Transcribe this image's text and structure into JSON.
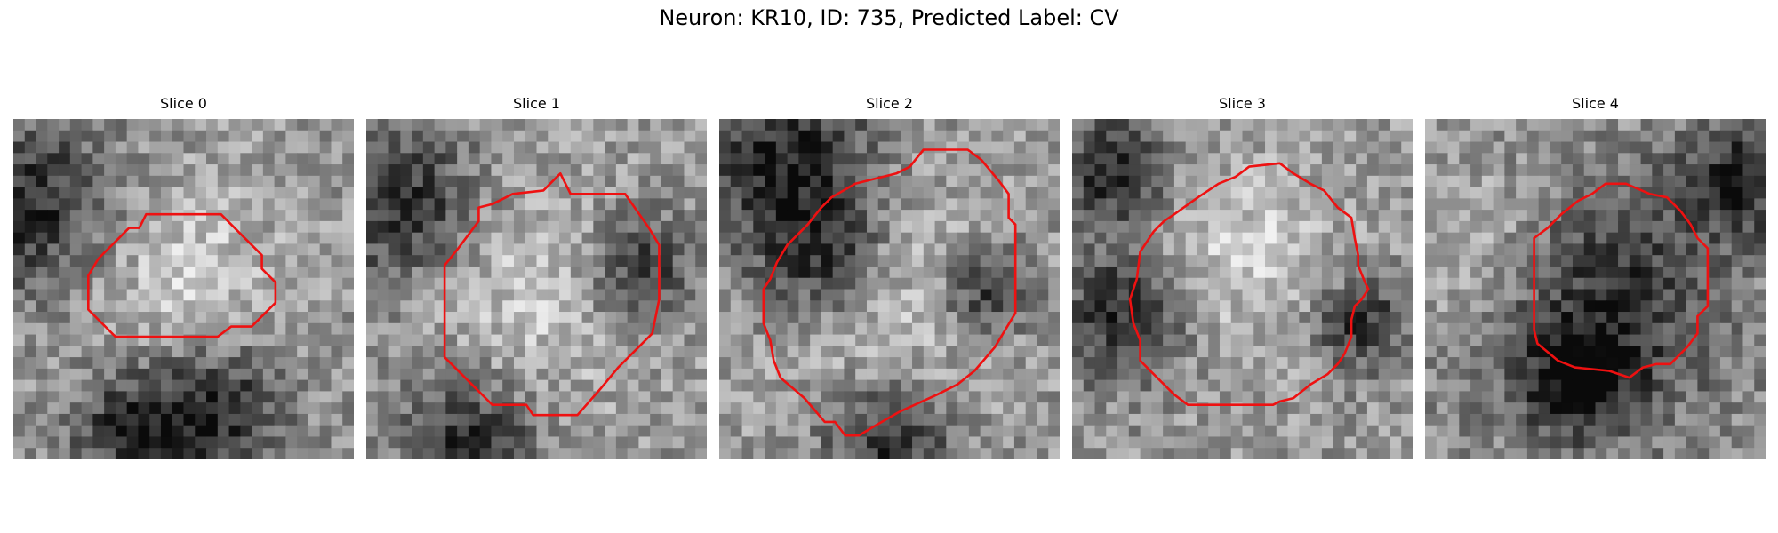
{
  "figure": {
    "title": "Neuron: KR10, ID: 735, Predicted Label: CV",
    "contour_color": "#ee1111"
  },
  "slices": [
    {
      "title": "Slice 0",
      "grid": 30,
      "bright_center": [
        0.5,
        0.45
      ],
      "bright_radius": 0.28,
      "dark_blobs": [
        [
          0.05,
          0.25,
          0.18
        ],
        [
          0.6,
          0.85,
          0.14
        ],
        [
          0.35,
          0.92,
          0.12
        ]
      ],
      "contour": [
        [
          0.39,
          0.28
        ],
        [
          0.61,
          0.28
        ],
        [
          0.66,
          0.33
        ],
        [
          0.69,
          0.36
        ],
        [
          0.73,
          0.4
        ],
        [
          0.73,
          0.44
        ],
        [
          0.77,
          0.48
        ],
        [
          0.77,
          0.54
        ],
        [
          0.73,
          0.58
        ],
        [
          0.7,
          0.61
        ],
        [
          0.64,
          0.61
        ],
        [
          0.6,
          0.64
        ],
        [
          0.3,
          0.64
        ],
        [
          0.22,
          0.56
        ],
        [
          0.22,
          0.46
        ],
        [
          0.25,
          0.41
        ],
        [
          0.3,
          0.36
        ],
        [
          0.34,
          0.32
        ],
        [
          0.37,
          0.32
        ]
      ]
    },
    {
      "title": "Slice 1",
      "grid": 30,
      "bright_center": [
        0.52,
        0.5
      ],
      "bright_radius": 0.32,
      "dark_blobs": [
        [
          0.1,
          0.25,
          0.16
        ],
        [
          0.8,
          0.45,
          0.12
        ],
        [
          0.3,
          0.95,
          0.14
        ]
      ],
      "contour": [
        [
          0.33,
          0.26
        ],
        [
          0.37,
          0.25
        ],
        [
          0.43,
          0.22
        ],
        [
          0.52,
          0.21
        ],
        [
          0.56,
          0.17
        ],
        [
          0.57,
          0.16
        ],
        [
          0.6,
          0.22
        ],
        [
          0.76,
          0.22
        ],
        [
          0.83,
          0.32
        ],
        [
          0.86,
          0.37
        ],
        [
          0.86,
          0.53
        ],
        [
          0.84,
          0.63
        ],
        [
          0.81,
          0.66
        ],
        [
          0.74,
          0.73
        ],
        [
          0.69,
          0.79
        ],
        [
          0.62,
          0.87
        ],
        [
          0.49,
          0.87
        ],
        [
          0.47,
          0.84
        ],
        [
          0.37,
          0.84
        ],
        [
          0.23,
          0.7
        ],
        [
          0.23,
          0.43
        ],
        [
          0.27,
          0.38
        ],
        [
          0.3,
          0.34
        ],
        [
          0.33,
          0.3
        ]
      ]
    },
    {
      "title": "Slice 2",
      "grid": 30,
      "bright_center": [
        0.5,
        0.52
      ],
      "bright_radius": 0.36,
      "dark_blobs": [
        [
          0.18,
          0.1,
          0.2
        ],
        [
          0.3,
          0.4,
          0.14
        ],
        [
          0.78,
          0.5,
          0.1
        ],
        [
          0.5,
          0.95,
          0.14
        ]
      ],
      "contour": [
        [
          0.6,
          0.09
        ],
        [
          0.73,
          0.09
        ],
        [
          0.77,
          0.12
        ],
        [
          0.82,
          0.18
        ],
        [
          0.85,
          0.22
        ],
        [
          0.85,
          0.29
        ],
        [
          0.87,
          0.31
        ],
        [
          0.87,
          0.57
        ],
        [
          0.81,
          0.67
        ],
        [
          0.75,
          0.74
        ],
        [
          0.7,
          0.78
        ],
        [
          0.64,
          0.81
        ],
        [
          0.53,
          0.86
        ],
        [
          0.46,
          0.9
        ],
        [
          0.41,
          0.93
        ],
        [
          0.37,
          0.93
        ],
        [
          0.34,
          0.89
        ],
        [
          0.31,
          0.89
        ],
        [
          0.25,
          0.82
        ],
        [
          0.18,
          0.76
        ],
        [
          0.16,
          0.71
        ],
        [
          0.15,
          0.65
        ],
        [
          0.13,
          0.6
        ],
        [
          0.13,
          0.5
        ],
        [
          0.15,
          0.47
        ],
        [
          0.17,
          0.42
        ],
        [
          0.2,
          0.37
        ],
        [
          0.23,
          0.34
        ],
        [
          0.26,
          0.31
        ],
        [
          0.3,
          0.26
        ],
        [
          0.33,
          0.23
        ],
        [
          0.4,
          0.19
        ],
        [
          0.44,
          0.18
        ],
        [
          0.52,
          0.16
        ],
        [
          0.56,
          0.14
        ]
      ]
    },
    {
      "title": "Slice 3",
      "grid": 30,
      "bright_center": [
        0.5,
        0.4
      ],
      "bright_radius": 0.3,
      "dark_blobs": [
        [
          0.15,
          0.57,
          0.14
        ],
        [
          0.12,
          0.15,
          0.12
        ],
        [
          0.85,
          0.6,
          0.1
        ]
      ],
      "contour": [
        [
          0.3,
          0.28
        ],
        [
          0.37,
          0.23
        ],
        [
          0.43,
          0.19
        ],
        [
          0.48,
          0.17
        ],
        [
          0.52,
          0.14
        ],
        [
          0.61,
          0.13
        ],
        [
          0.65,
          0.16
        ],
        [
          0.7,
          0.19
        ],
        [
          0.74,
          0.21
        ],
        [
          0.78,
          0.26
        ],
        [
          0.82,
          0.29
        ],
        [
          0.83,
          0.35
        ],
        [
          0.84,
          0.4
        ],
        [
          0.84,
          0.43
        ],
        [
          0.86,
          0.48
        ],
        [
          0.87,
          0.5
        ],
        [
          0.85,
          0.53
        ],
        [
          0.83,
          0.55
        ],
        [
          0.82,
          0.59
        ],
        [
          0.82,
          0.64
        ],
        [
          0.8,
          0.69
        ],
        [
          0.78,
          0.72
        ],
        [
          0.75,
          0.75
        ],
        [
          0.7,
          0.78
        ],
        [
          0.65,
          0.82
        ],
        [
          0.61,
          0.83
        ],
        [
          0.59,
          0.84
        ],
        [
          0.34,
          0.84
        ],
        [
          0.3,
          0.81
        ],
        [
          0.24,
          0.75
        ],
        [
          0.2,
          0.71
        ],
        [
          0.2,
          0.65
        ],
        [
          0.18,
          0.6
        ],
        [
          0.17,
          0.53
        ],
        [
          0.19,
          0.47
        ],
        [
          0.2,
          0.39
        ],
        [
          0.24,
          0.33
        ],
        [
          0.27,
          0.3
        ]
      ]
    },
    {
      "title": "Slice 4",
      "grid": 30,
      "bright_center": [
        0.2,
        0.4
      ],
      "bright_radius": 0.25,
      "dark_blobs": [
        [
          0.5,
          0.55,
          0.26
        ],
        [
          0.92,
          0.18,
          0.12
        ],
        [
          0.45,
          0.78,
          0.1
        ]
      ],
      "contour": [
        [
          0.49,
          0.22
        ],
        [
          0.53,
          0.19
        ],
        [
          0.59,
          0.19
        ],
        [
          0.66,
          0.22
        ],
        [
          0.71,
          0.23
        ],
        [
          0.75,
          0.27
        ],
        [
          0.78,
          0.31
        ],
        [
          0.8,
          0.35
        ],
        [
          0.83,
          0.38
        ],
        [
          0.83,
          0.55
        ],
        [
          0.8,
          0.58
        ],
        [
          0.8,
          0.63
        ],
        [
          0.77,
          0.67
        ],
        [
          0.72,
          0.72
        ],
        [
          0.68,
          0.72
        ],
        [
          0.64,
          0.73
        ],
        [
          0.6,
          0.76
        ],
        [
          0.54,
          0.74
        ],
        [
          0.44,
          0.73
        ],
        [
          0.39,
          0.71
        ],
        [
          0.33,
          0.66
        ],
        [
          0.32,
          0.62
        ],
        [
          0.32,
          0.35
        ],
        [
          0.36,
          0.32
        ],
        [
          0.4,
          0.28
        ],
        [
          0.45,
          0.24
        ]
      ]
    }
  ]
}
